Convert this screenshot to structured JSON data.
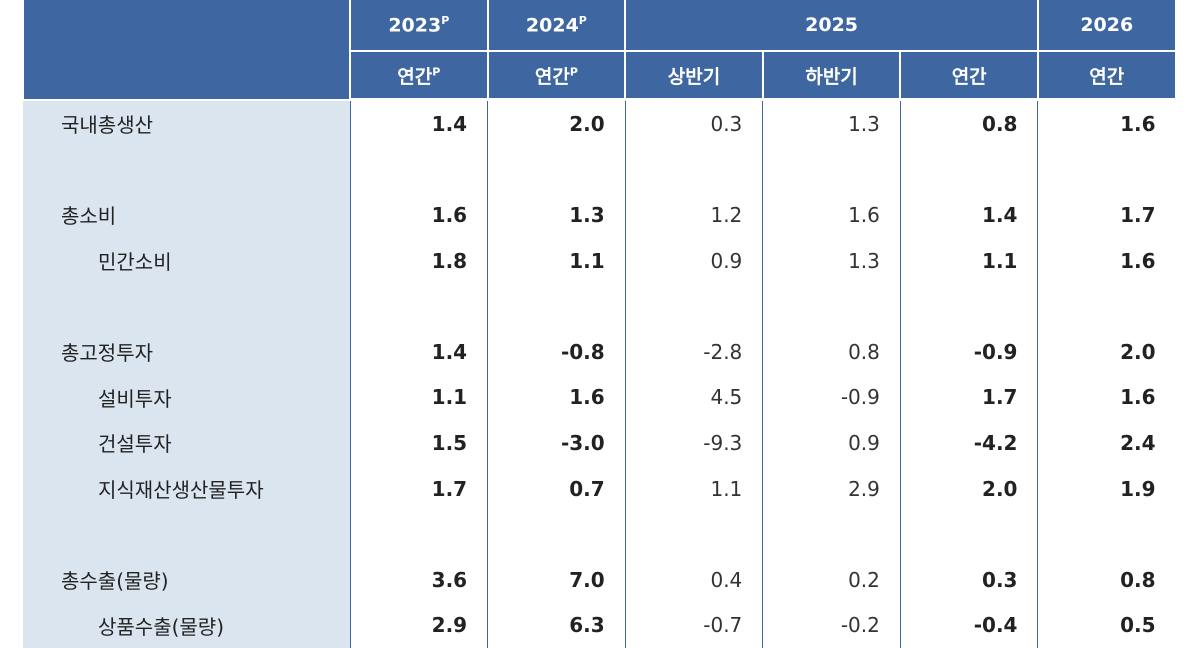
{
  "header": {
    "years": [
      {
        "label": "2023",
        "sup": "P"
      },
      {
        "label": "2024",
        "sup": "P"
      },
      {
        "label": "2025"
      },
      {
        "label": "2026"
      }
    ],
    "periods": [
      {
        "label": "연간",
        "sup": "P"
      },
      {
        "label": "연간",
        "sup": "P"
      },
      {
        "label": "상반기"
      },
      {
        "label": "하반기"
      },
      {
        "label": "연간"
      },
      {
        "label": "연간"
      }
    ]
  },
  "rows": [
    {
      "label": "국내총생산",
      "values": [
        "1.4",
        "2.0",
        "0.3",
        "1.3",
        "0.8",
        "1.6"
      ]
    },
    {
      "label": "총소비",
      "values": [
        "1.6",
        "1.3",
        "1.2",
        "1.6",
        "1.4",
        "1.7"
      ]
    },
    {
      "label": "민간소비",
      "values": [
        "1.8",
        "1.1",
        "0.9",
        "1.3",
        "1.1",
        "1.6"
      ]
    },
    {
      "label": "총고정투자",
      "values": [
        "1.4",
        "-0.8",
        "-2.8",
        "0.8",
        "-0.9",
        "2.0"
      ]
    },
    {
      "label": "설비투자",
      "values": [
        "1.1",
        "1.6",
        "4.5",
        "-0.9",
        "1.7",
        "1.6"
      ]
    },
    {
      "label": "건설투자",
      "values": [
        "1.5",
        "-3.0",
        "-9.3",
        "0.9",
        "-4.2",
        "2.4"
      ]
    },
    {
      "label": "지식재산생산물투자",
      "values": [
        "1.7",
        "0.7",
        "1.1",
        "2.9",
        "2.0",
        "1.9"
      ]
    },
    {
      "label": "총수출(물량)",
      "values": [
        "3.6",
        "7.0",
        "0.4",
        "0.2",
        "0.3",
        "0.8"
      ]
    },
    {
      "label": "상품수출(물량)",
      "values": [
        "2.9",
        "6.3",
        "-0.7",
        "-0.2",
        "-0.4",
        "0.5"
      ]
    }
  ],
  "colors": {
    "header_bg": "#3e66a0",
    "label_bg": "#dbe5f0"
  }
}
